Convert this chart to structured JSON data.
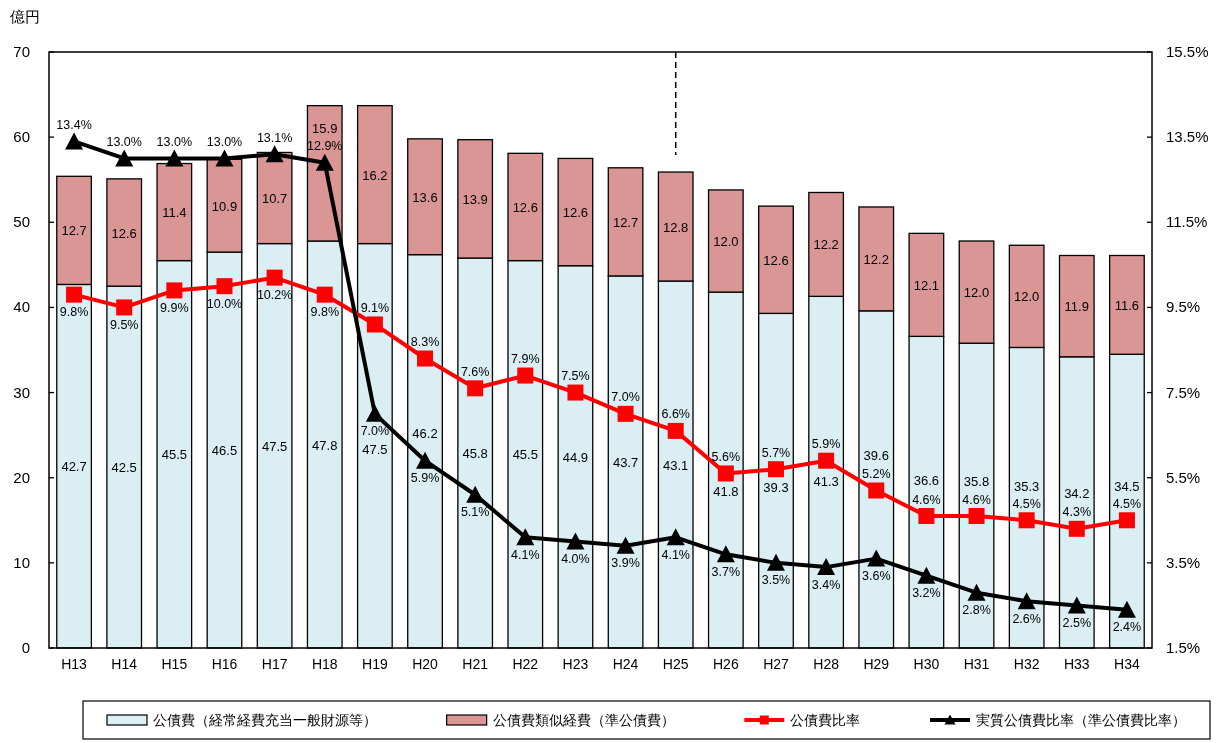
{
  "chart_data": {
    "type": "bar",
    "stacked": true,
    "ylabel": "億円",
    "categories": [
      "H13",
      "H14",
      "H15",
      "H16",
      "H17",
      "H18",
      "H19",
      "H20",
      "H21",
      "H22",
      "H23",
      "H24",
      "H25",
      "H26",
      "H27",
      "H28",
      "H29",
      "H30",
      "H31",
      "H32",
      "H33",
      "H34"
    ],
    "series": [
      {
        "name": "公債費（経常経費充当一般財源等）",
        "color": "#daeef3",
        "values": [
          42.7,
          42.5,
          45.5,
          46.5,
          47.5,
          47.8,
          47.5,
          46.2,
          45.8,
          45.5,
          44.9,
          43.7,
          43.1,
          41.8,
          39.3,
          41.3,
          39.6,
          36.6,
          35.8,
          35.3,
          34.2,
          34.5
        ],
        "value_labels": [
          "42.7",
          "42.5",
          "45.5",
          "46.5",
          "47.5",
          "47.8",
          "47.5",
          "46.2",
          "45.8",
          "45.5",
          "44.9",
          "43.7",
          "43.1",
          "41.8",
          "39.3",
          "41.3",
          "39.6",
          "36.6",
          "35.8",
          "35.3",
          "34.2",
          "34.5"
        ]
      },
      {
        "name": "公債費類似経費（準公債費）",
        "color": "#d99694",
        "values": [
          12.7,
          12.6,
          11.4,
          10.9,
          10.7,
          15.9,
          16.2,
          13.6,
          13.9,
          12.6,
          12.6,
          12.7,
          12.8,
          12.0,
          12.6,
          12.2,
          12.2,
          12.1,
          12.0,
          12.0,
          11.9,
          11.6
        ],
        "value_labels": [
          "12.7",
          "12.6",
          "11.4",
          "10.9",
          "10.7",
          "15.9",
          "16.2",
          "13.6",
          "13.9",
          "12.6",
          "12.6",
          "12.7",
          "12.8",
          "12.0",
          "12.6",
          "12.2",
          "12.2",
          "12.1",
          "12.0",
          "12.0",
          "11.9",
          "11.6"
        ]
      },
      {
        "name": "公債費比率",
        "type": "line",
        "axis": "y2",
        "color": "#ff0000",
        "marker": "square",
        "values": [
          9.8,
          9.5,
          9.9,
          10.0,
          10.2,
          9.8,
          9.1,
          8.3,
          7.6,
          7.9,
          7.5,
          7.0,
          6.6,
          5.6,
          5.7,
          5.9,
          5.2,
          4.6,
          4.6,
          4.5,
          4.3,
          4.5
        ],
        "value_labels": [
          "9.8%",
          "9.5%",
          "9.9%",
          "10.0%",
          "10.2%",
          "9.8%",
          "9.1%",
          "8.3%",
          "7.6%",
          "7.9%",
          "7.5%",
          "7.0%",
          "6.6%",
          "5.6%",
          "5.7%",
          "5.9%",
          "5.2%",
          "4.6%",
          "4.6%",
          "4.5%",
          "4.3%",
          "4.5%"
        ]
      },
      {
        "name": "実質公債費比率（準公債費比率）",
        "type": "line",
        "axis": "y2",
        "color": "#000000",
        "marker": "triangle",
        "values": [
          13.4,
          13.0,
          13.0,
          13.0,
          13.1,
          12.9,
          7.0,
          5.9,
          5.1,
          4.1,
          4.0,
          3.9,
          4.1,
          3.7,
          3.5,
          3.4,
          3.6,
          3.2,
          2.8,
          2.6,
          2.5,
          2.4
        ],
        "value_labels": [
          "13.4%",
          "13.0%",
          "13.0%",
          "13.0%",
          "13.1%",
          "12.9%",
          "7.0%",
          "5.9%",
          "5.1%",
          "4.1%",
          "4.0%",
          "3.9%",
          "4.1%",
          "3.7%",
          "3.5%",
          "3.4%",
          "3.6%",
          "3.2%",
          "2.8%",
          "2.6%",
          "2.5%",
          "2.4%"
        ]
      }
    ],
    "ylim": [
      0,
      70
    ],
    "yticks": [
      0,
      10,
      20,
      30,
      40,
      50,
      60,
      70
    ],
    "y2lim": [
      1.5,
      15.5
    ],
    "y2ticks": [
      {
        "value": 1.5,
        "label": "1.5%"
      },
      {
        "value": 3.5,
        "label": "3.5%"
      },
      {
        "value": 5.5,
        "label": "5.5%"
      },
      {
        "value": 7.5,
        "label": "7.5%"
      },
      {
        "value": 9.5,
        "label": "9.5%"
      },
      {
        "value": 11.5,
        "label": "11.5%"
      },
      {
        "value": 13.5,
        "label": "13.5%"
      },
      {
        "value": 15.5,
        "label": "15.5%"
      }
    ],
    "ref_lines": [
      {
        "axis": "x",
        "value": "H25",
        "line_style": "dashed",
        "color": "#000000"
      }
    ],
    "legend": "bottom"
  }
}
